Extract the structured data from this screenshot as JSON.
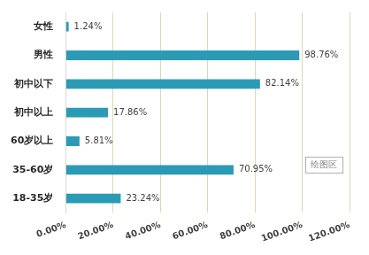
{
  "chart_data": {
    "type": "bar",
    "orientation": "horizontal",
    "categories": [
      "女性",
      "男性",
      "初中以下",
      "初中以上",
      "60岁以上",
      "35-60岁",
      "18-35岁"
    ],
    "values": [
      1.24,
      98.76,
      82.14,
      17.86,
      5.81,
      70.95,
      23.24
    ],
    "value_labels": [
      "1.24%",
      "98.76%",
      "82.14%",
      "17.86%",
      "5.81%",
      "70.95%",
      "23.24%"
    ],
    "color": "#2b9bb5",
    "xlim": [
      0,
      120
    ],
    "xticks": [
      {
        "value": 0,
        "label": "0.00%"
      },
      {
        "value": 20,
        "label": "20.00%"
      },
      {
        "value": 40,
        "label": "40.00%"
      },
      {
        "value": 60,
        "label": "60.00%"
      },
      {
        "value": 80,
        "label": "80.00%"
      },
      {
        "value": 100,
        "label": "100.00%"
      },
      {
        "value": 120,
        "label": "120.00%"
      }
    ],
    "grid": true,
    "data_labels": true,
    "annotation": "绘图区"
  }
}
